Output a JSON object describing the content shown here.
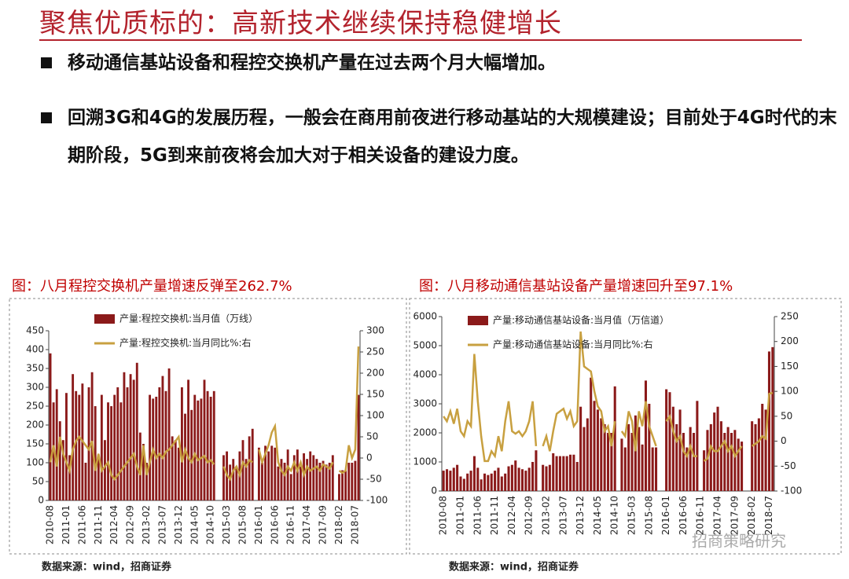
{
  "header": {
    "title": "聚焦优质标的：高新技术继续保持稳健增长"
  },
  "bullets": [
    "移动通信基站设备和程控交换机产量在过去两个月大幅增加。",
    "回溯3G和4G的发展历程，一般会在商用前夜进行移动基站的大规模建设；目前处于4G时代的末期阶段，5G到来前夜将会加大对于相关设备的建设力度。"
  ],
  "watermark": "招商策略研究",
  "chart_data": [
    {
      "type": "combo",
      "title": "图：八月程控交换机产量增速反弹至262.7%",
      "source": "数据来源：wind，招商证券",
      "categories": [
        "2010-08",
        null,
        null,
        null,
        null,
        "2011-01",
        null,
        null,
        null,
        null,
        "2011-06",
        null,
        null,
        null,
        null,
        "2011-11",
        null,
        null,
        null,
        null,
        "2012-04",
        null,
        null,
        null,
        null,
        "2012-09",
        null,
        null,
        null,
        null,
        "2013-02",
        null,
        null,
        null,
        null,
        "2013-07",
        null,
        null,
        null,
        null,
        "2013-12",
        null,
        null,
        null,
        null,
        "2014-05",
        null,
        null,
        null,
        null,
        "2014-10",
        null,
        null,
        null,
        null,
        "2015-03",
        null,
        null,
        null,
        null,
        "2015-08",
        null,
        null,
        null,
        null,
        "2016-01",
        null,
        null,
        null,
        null,
        "2016-06",
        null,
        null,
        null,
        null,
        "2016-11",
        null,
        null,
        null,
        null,
        "2017-04",
        null,
        null,
        null,
        null,
        "2017-09",
        null,
        null,
        null,
        null,
        "2018-02",
        null,
        null,
        null,
        null,
        "2018-07",
        null
      ],
      "ylim": [
        0,
        450
      ],
      "yticks": [
        0,
        50,
        100,
        150,
        200,
        250,
        300,
        350,
        400,
        450
      ],
      "y2lim": [
        -100,
        300
      ],
      "y2ticks": [
        -100,
        -50,
        0,
        50,
        100,
        150,
        200,
        250,
        300
      ],
      "series": [
        {
          "name": "产量:程控交换机:当月值（万线）",
          "kind": "bar",
          "color": "#8b1a1a",
          "values": [
            390,
            260,
            295,
            210,
            160,
            285,
            120,
            335,
            290,
            280,
            310,
            100,
            300,
            340,
            250,
            120,
            280,
            160,
            260,
            250,
            280,
            300,
            260,
            340,
            300,
            335,
            320,
            365,
            180,
            150,
            100,
            280,
            270,
            275,
            300,
            330,
            290,
            350,
            170,
            160,
            140,
            300,
            230,
            320,
            240,
            280,
            265,
            270,
            320,
            290,
            275,
            290,
            null,
            null,
            120,
            130,
            95,
            110,
            90,
            130,
            160,
            110,
            170,
            190,
            null,
            140,
            100,
            145,
            130,
            145,
            140,
            90,
            110,
            100,
            135,
            70,
            120,
            135,
            90,
            125,
            110,
            130,
            120,
            110,
            100,
            105,
            95,
            100,
            120,
            null,
            70,
            80,
            80,
            100,
            100,
            105,
            280
          ]
        },
        {
          "name": "产量:程控交换机:当月同比%:右",
          "kind": "line",
          "axis": "y2",
          "color": "#c8a040",
          "values": [
            -10,
            30,
            -20,
            50,
            10,
            -10,
            -30,
            20,
            40,
            50,
            40,
            30,
            20,
            40,
            -30,
            10,
            -30,
            -20,
            -10,
            -40,
            -50,
            -40,
            -30,
            -20,
            -10,
            0,
            10,
            -20,
            -40,
            30,
            -40,
            -10,
            20,
            0,
            10,
            0,
            15,
            20,
            30,
            40,
            50,
            -10,
            20,
            0,
            -10,
            10,
            -5,
            0,
            5,
            -10,
            -5,
            -15,
            null,
            null,
            -20,
            -40,
            -50,
            -30,
            -20,
            -40,
            -10,
            -20,
            -5,
            -10,
            null,
            20,
            -10,
            10,
            30,
            60,
            75,
            -10,
            -30,
            -40,
            -20,
            -30,
            -10,
            -30,
            -10,
            -40,
            -20,
            -30,
            -25,
            -20,
            -30,
            -15,
            -20,
            -25,
            -10,
            null,
            -30,
            -35,
            -30,
            30,
            0,
            20,
            262.7
          ]
        }
      ]
    },
    {
      "type": "combo",
      "title": "图：八月移动通信基站设备产量增速回升至97.1%",
      "source": "数据来源：wind，招商证券",
      "categories": [
        "2010-08",
        null,
        null,
        null,
        null,
        "2011-01",
        null,
        null,
        null,
        null,
        "2011-06",
        null,
        null,
        null,
        null,
        "2011-11",
        null,
        null,
        null,
        null,
        "2012-04",
        null,
        null,
        null,
        null,
        "2012-09",
        null,
        null,
        null,
        null,
        "2013-02",
        null,
        null,
        null,
        null,
        "2013-07",
        null,
        null,
        null,
        null,
        "2013-12",
        null,
        null,
        null,
        null,
        "2014-05",
        null,
        null,
        null,
        null,
        "2014-10",
        null,
        null,
        null,
        null,
        "2015-03",
        null,
        null,
        null,
        null,
        "2015-08",
        null,
        null,
        null,
        null,
        "2016-01",
        null,
        null,
        null,
        null,
        "2016-06",
        null,
        null,
        null,
        null,
        "2016-11",
        null,
        null,
        null,
        null,
        "2017-04",
        null,
        null,
        null,
        null,
        "2017-09",
        null,
        null,
        null,
        null,
        "2018-02",
        null,
        null,
        null,
        null,
        "2018-07",
        null
      ],
      "ylim": [
        0,
        6000
      ],
      "yticks": [
        0,
        1000,
        2000,
        3000,
        4000,
        5000,
        6000
      ],
      "y2lim": [
        -100,
        250
      ],
      "y2ticks": [
        -100,
        -50,
        0,
        50,
        100,
        150,
        200,
        250
      ],
      "series": [
        {
          "name": "产量:移动通信基站设备:当月值（万信道）",
          "kind": "bar",
          "color": "#8b1a1a",
          "values": [
            700,
            750,
            700,
            800,
            900,
            500,
            420,
            600,
            700,
            1200,
            800,
            400,
            600,
            550,
            600,
            700,
            800,
            500,
            600,
            850,
            900,
            1050,
            800,
            750,
            700,
            800,
            1000,
            1400,
            null,
            900,
            850,
            900,
            1300,
            1200,
            1200,
            1200,
            1200,
            1250,
            1250,
            1000,
            2900,
            2200,
            2500,
            3900,
            3100,
            2800,
            2500,
            2300,
            2000,
            2000,
            3600,
            null,
            1800,
            1500,
            2300,
            2000,
            2600,
            2200,
            1600,
            3800,
            3000,
            1500,
            1500,
            null,
            null,
            3500,
            3400,
            2900,
            2300,
            2800,
            2000,
            1500,
            2200,
            2000,
            3100,
            null,
            1400,
            2100,
            2300,
            2700,
            2900,
            2400,
            2000,
            2200,
            2000,
            2100,
            1800,
            1700,
            null,
            null,
            2400,
            2300,
            2500,
            3000,
            2800,
            4800,
            4950
          ]
        },
        {
          "name": "产量:移动通信基站设备:当月同比%:右",
          "kind": "line",
          "axis": "y2",
          "color": "#c8a040",
          "values": [
            50,
            40,
            60,
            35,
            65,
            20,
            10,
            40,
            30,
            175,
            80,
            10,
            -40,
            -40,
            -20,
            -30,
            10,
            -20,
            40,
            80,
            20,
            15,
            20,
            10,
            20,
            40,
            80,
            -10,
            null,
            -10,
            10,
            -20,
            20,
            55,
            60,
            65,
            45,
            60,
            30,
            40,
            220,
            150,
            145,
            140,
            100,
            70,
            60,
            20,
            30,
            -10,
            40,
            null,
            20,
            10,
            60,
            40,
            -20,
            60,
            30,
            80,
            30,
            10,
            -10,
            null,
            null,
            40,
            50,
            20,
            0,
            10,
            -20,
            -30,
            -10,
            -30,
            -30,
            null,
            -40,
            -35,
            -10,
            -20,
            -20,
            -10,
            0,
            -20,
            -10,
            -30,
            -20,
            -10,
            null,
            null,
            -10,
            -5,
            0,
            10,
            5,
            95,
            97.1
          ]
        }
      ]
    }
  ]
}
